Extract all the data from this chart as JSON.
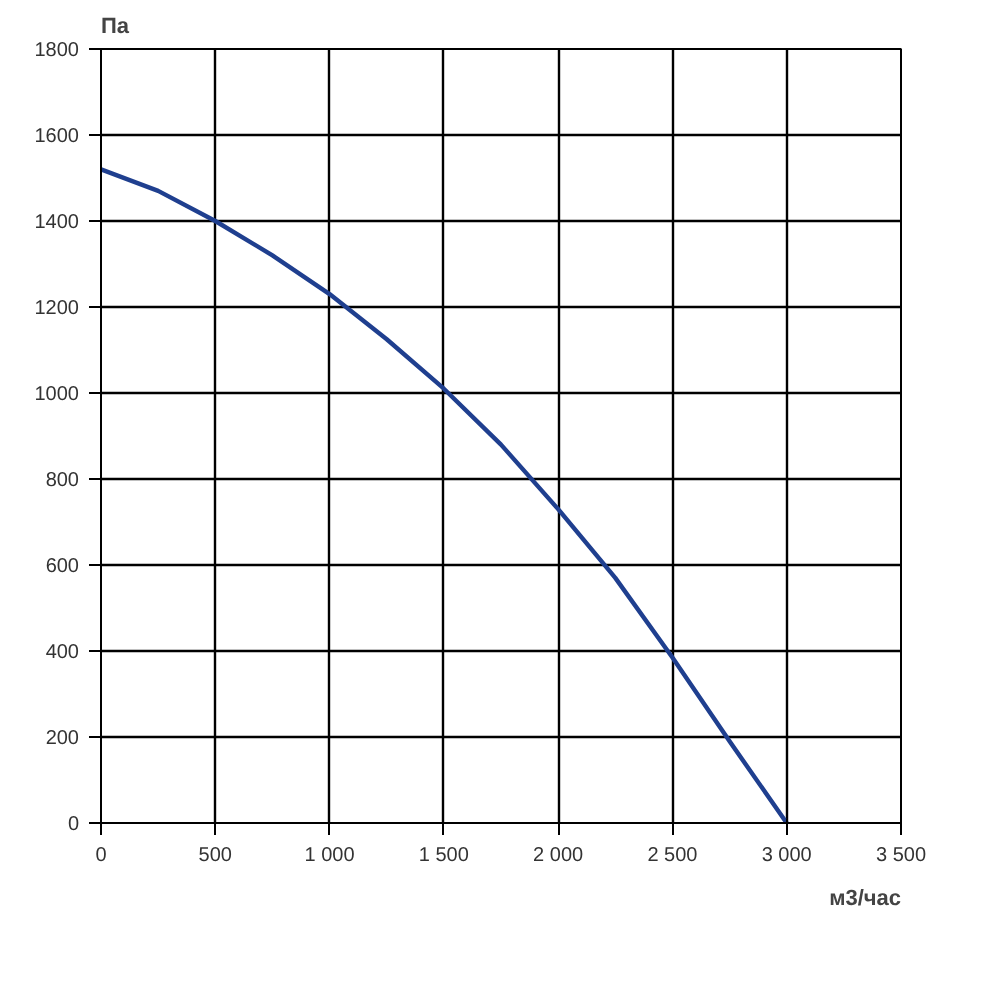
{
  "chart_data": {
    "type": "line",
    "x": [
      0,
      250,
      500,
      750,
      1000,
      1250,
      1500,
      1750,
      2000,
      2250,
      2500,
      2750,
      3000
    ],
    "series": [
      {
        "color": "#1f3f8f",
        "values": [
          1520,
          1470,
          1400,
          1320,
          1230,
          1125,
          1010,
          880,
          730,
          570,
          385,
          190,
          0
        ]
      }
    ],
    "xlabel": "м3/час",
    "ylabel": "Па",
    "xlim": [
      0,
      3500
    ],
    "ylim": [
      0,
      1800
    ],
    "xticks": [
      0,
      500,
      {
        "value": 1000,
        "label": "1 000"
      },
      {
        "value": 1500,
        "label": "1 500"
      },
      {
        "value": 2000,
        "label": "2 000"
      },
      {
        "value": 2500,
        "label": "2 500"
      },
      {
        "value": 3000,
        "label": "3 000"
      },
      {
        "value": 3500,
        "label": "3 500"
      }
    ],
    "yticks": [
      0,
      200,
      400,
      600,
      800,
      1000,
      1200,
      1400,
      1600,
      1800
    ],
    "grid": true,
    "marker": "none",
    "line_style": "solid"
  }
}
